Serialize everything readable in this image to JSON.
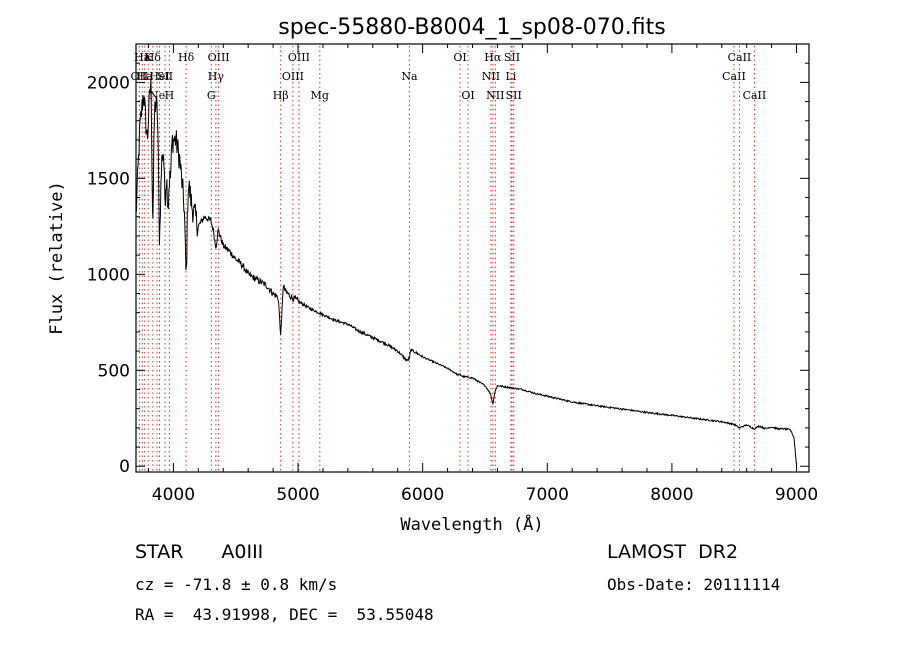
{
  "chart_data": {
    "type": "line",
    "title": "spec-55880-B8004_1_sp08-070.fits",
    "xlabel": "Wavelength (Å)",
    "ylabel": "Flux (relative)",
    "xlim": [
      3700,
      9100
    ],
    "ylim": [
      -30,
      2200
    ],
    "xticks": [
      4000,
      5000,
      6000,
      7000,
      8000,
      9000
    ],
    "yticks": [
      0,
      500,
      1000,
      1500,
      2000
    ],
    "line_color": "#000000",
    "marker_color": "#c0392b",
    "spectrum": {
      "x": [
        3700,
        3730,
        3760,
        3790,
        3820,
        3850,
        3880,
        3900,
        3930,
        3960,
        3990,
        4020,
        4050,
        4080,
        4100,
        4120,
        4150,
        4200,
        4250,
        4300,
        4340,
        4360,
        4400,
        4450,
        4500,
        4550,
        4600,
        4650,
        4700,
        4750,
        4800,
        4840,
        4861,
        4880,
        4900,
        4950,
        5000,
        5100,
        5200,
        5300,
        5400,
        5500,
        5600,
        5700,
        5800,
        5890,
        5900,
        6000,
        6100,
        6200,
        6300,
        6400,
        6500,
        6563,
        6600,
        6700,
        6800,
        6900,
        7000,
        7200,
        7400,
        7600,
        7800,
        8000,
        8200,
        8400,
        8500,
        8540,
        8600,
        8660,
        8700,
        8750,
        8800,
        8850,
        8900,
        8950,
        8980,
        9000
      ],
      "y": [
        1300,
        1750,
        1950,
        1700,
        2050,
        1900,
        1850,
        1550,
        1750,
        1300,
        1700,
        1700,
        1600,
        1400,
        1320,
        1480,
        1350,
        1250,
        1300,
        1280,
        1180,
        1230,
        1150,
        1120,
        1080,
        1050,
        1000,
        980,
        960,
        940,
        900,
        880,
        770,
        940,
        910,
        880,
        860,
        820,
        790,
        760,
        740,
        700,
        670,
        640,
        600,
        540,
        610,
        570,
        540,
        510,
        470,
        460,
        420,
        360,
        420,
        410,
        400,
        380,
        365,
        335,
        315,
        298,
        280,
        265,
        248,
        232,
        218,
        200,
        215,
        195,
        210,
        196,
        205,
        195,
        195,
        190,
        150,
        5
      ]
    },
    "absorption_dips": [
      {
        "x": 3835,
        "depth": 1300
      },
      {
        "x": 3889,
        "depth": 1200
      },
      {
        "x": 3933,
        "depth": 1400
      },
      {
        "x": 3970,
        "depth": 1500
      },
      {
        "x": 4102,
        "depth": 1000
      },
      {
        "x": 4340,
        "depth": 1150
      },
      {
        "x": 4861,
        "depth": 700
      },
      {
        "x": 5890,
        "depth": 560
      },
      {
        "x": 6300,
        "depth": 480
      },
      {
        "x": 6563,
        "depth": 330
      }
    ],
    "line_markers": [
      {
        "x": 3727,
        "label": "OII",
        "row": 1
      },
      {
        "x": 3750,
        "label": "Ha",
        "row": 0
      },
      {
        "x": 3770,
        "label": "Ha",
        "row": 1
      },
      {
        "x": 3798,
        "label": "K",
        "row": 0
      },
      {
        "x": 3835,
        "label": "Hδ",
        "row": 0
      },
      {
        "x": 3869,
        "label": "Ne",
        "row": 2
      },
      {
        "x": 3889,
        "label": "HeI",
        "row": 1
      },
      {
        "x": 3933,
        "label": "SII",
        "row": 1
      },
      {
        "x": 3968,
        "label": "H",
        "row": 2
      },
      {
        "x": 4102,
        "label": "Hδ",
        "row": 0
      },
      {
        "x": 4304,
        "label": "G",
        "row": 2
      },
      {
        "x": 4341,
        "label": "Hγ",
        "row": 1
      },
      {
        "x": 4363,
        "label": "OIII",
        "row": 0
      },
      {
        "x": 4861,
        "label": "Hβ",
        "row": 2
      },
      {
        "x": 4959,
        "label": "OIII",
        "row": 1
      },
      {
        "x": 5007,
        "label": "OIII",
        "row": 0
      },
      {
        "x": 5175,
        "label": "Mg",
        "row": 2
      },
      {
        "x": 5894,
        "label": "Na",
        "row": 1
      },
      {
        "x": 6300,
        "label": "OI",
        "row": 0
      },
      {
        "x": 6364,
        "label": "OI",
        "row": 2
      },
      {
        "x": 6548,
        "label": "NII",
        "row": 1
      },
      {
        "x": 6563,
        "label": "Hα",
        "row": 0
      },
      {
        "x": 6583,
        "label": "NII",
        "row": 2
      },
      {
        "x": 6708,
        "label": "Li",
        "row": 1
      },
      {
        "x": 6717,
        "label": "SII",
        "row": 0
      },
      {
        "x": 6731,
        "label": "SII",
        "row": 2
      },
      {
        "x": 8498,
        "label": "CaII",
        "row": 1
      },
      {
        "x": 8542,
        "label": "CaII",
        "row": 0
      },
      {
        "x": 8662,
        "label": "CaII",
        "row": 2
      }
    ]
  },
  "info": {
    "class_label": "STAR",
    "subclass": "A0III",
    "survey": "LAMOST  DR2",
    "redshift": "cz = -71.8 ± 0.8 km/s",
    "obs_date": "Obs-Date: 20111114",
    "coords": "RA =  43.91998, DEC =  53.55048"
  }
}
